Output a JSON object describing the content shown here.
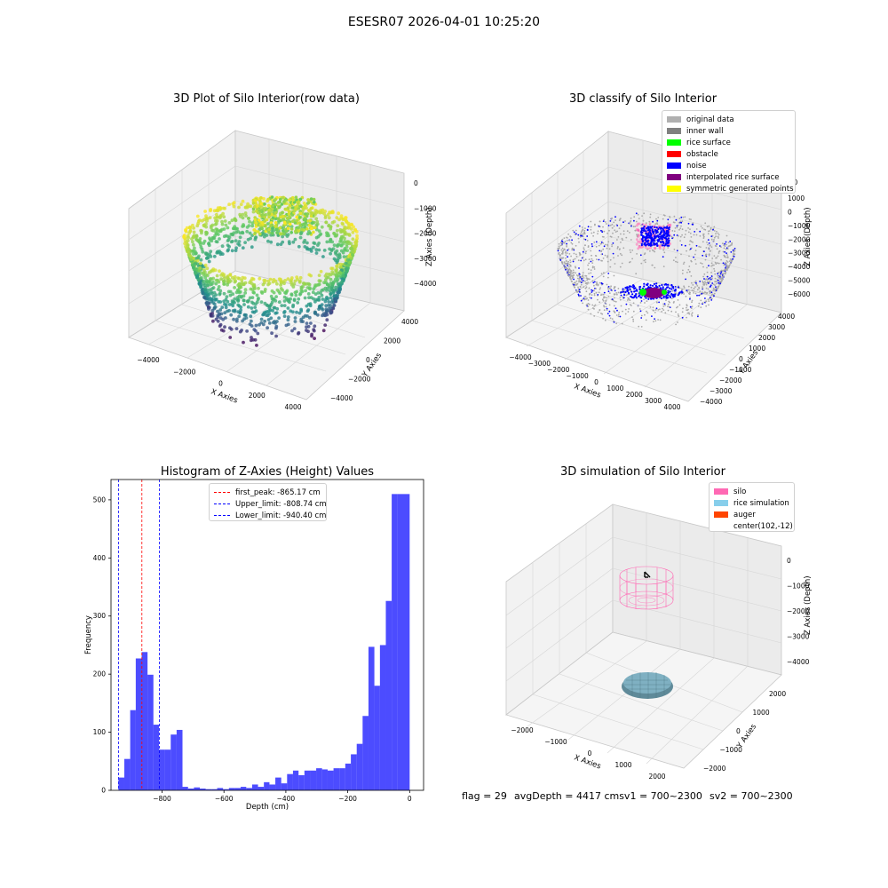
{
  "figure": {
    "suptitle": "ESESR07 2026-04-01 10:25:20"
  },
  "panels": {
    "raw": {
      "title": "3D Plot of Silo Interior(row data)",
      "xlabel": "X Axies",
      "ylabel": "Y Axies",
      "zlabel": "Z Axies (Depth)",
      "xticks": [
        "−4000",
        "−2000",
        "0",
        "2000",
        "4000"
      ],
      "yticks": [
        "−4000",
        "−2000",
        "0",
        "2000",
        "4000"
      ],
      "zticks": [
        "0",
        "−1000",
        "−2000",
        "−3000",
        "−4000"
      ],
      "colormap": "viridis"
    },
    "classify": {
      "title": "3D classify of Silo Interior",
      "xlabel": "X Axies",
      "ylabel": "Y Axies",
      "zlabel": "Z Axies (Depth)",
      "xticks": [
        "−4000",
        "−3000",
        "−2000",
        "−1000",
        "0",
        "1000",
        "2000",
        "3000",
        "4000"
      ],
      "yticks": [
        "−4000",
        "−3000",
        "−2000",
        "−1000",
        "0",
        "1000",
        "2000",
        "3000",
        "4000"
      ],
      "zticks": [
        "1000",
        "0",
        "−1000",
        "−2000",
        "−3000",
        "−4000",
        "−5000",
        "−6000"
      ],
      "legend": [
        {
          "label": "original data",
          "color": "#b0b0b0"
        },
        {
          "label": "inner wall",
          "color": "#808080"
        },
        {
          "label": "rice surface",
          "color": "#00ff00"
        },
        {
          "label": "obstacle",
          "color": "#ff0000"
        },
        {
          "label": "noise",
          "color": "#0000ff"
        },
        {
          "label": "interpolated rice surface",
          "color": "#800080"
        },
        {
          "label": "symmetric generated points",
          "color": "#ffff00"
        }
      ],
      "partial_ztick": "000"
    },
    "simulation": {
      "title": "3D simulation of Silo Interior",
      "xlabel": "X Axies",
      "ylabel": "Y Axies",
      "zlabel": "Z Axies (Depth)",
      "xticks": [
        "−2000",
        "−1000",
        "0",
        "1000",
        "2000"
      ],
      "yticks": [
        "−2000",
        "−1000",
        "0",
        "1000",
        "2000"
      ],
      "zticks": [
        "0",
        "−1000",
        "−2000",
        "−3000",
        "−4000"
      ],
      "legend": [
        {
          "label": "silo",
          "color": "#ff69b4"
        },
        {
          "label": "rice simulation",
          "color": "#87ceeb"
        },
        {
          "label": "auger",
          "color": "#ff4500"
        },
        {
          "label": "center(102,-12)",
          "color": ""
        }
      ]
    }
  },
  "chart_data": [
    {
      "type": "bar",
      "title": "Histogram of Z-Axies (Height) Values",
      "xlabel": "Depth (cm)",
      "ylabel": "Frequency",
      "xlim": [
        -965,
        45
      ],
      "ylim": [
        0,
        535
      ],
      "xticks": [
        -800,
        -600,
        -400,
        -200,
        0
      ],
      "xtick_labels": [
        "−800",
        "−600",
        "−400",
        "−200",
        "0"
      ],
      "yticks": [
        0,
        100,
        200,
        300,
        400,
        500
      ],
      "ytick_labels": [
        "0",
        "100",
        "200",
        "300",
        "400",
        "500"
      ],
      "bar_color": "#0000ff",
      "bar_opacity": 0.7,
      "bins": [
        {
          "x0": -941,
          "x1": -922,
          "y": 22
        },
        {
          "x0": -922,
          "x1": -903,
          "y": 54
        },
        {
          "x0": -903,
          "x1": -885,
          "y": 138
        },
        {
          "x0": -885,
          "x1": -866,
          "y": 227
        },
        {
          "x0": -866,
          "x1": -847,
          "y": 238
        },
        {
          "x0": -847,
          "x1": -828,
          "y": 199
        },
        {
          "x0": -828,
          "x1": -810,
          "y": 113
        },
        {
          "x0": -810,
          "x1": -791,
          "y": 70
        },
        {
          "x0": -791,
          "x1": -772,
          "y": 70
        },
        {
          "x0": -772,
          "x1": -753,
          "y": 96
        },
        {
          "x0": -753,
          "x1": -734,
          "y": 104
        },
        {
          "x0": -734,
          "x1": -716,
          "y": 6
        },
        {
          "x0": -716,
          "x1": -697,
          "y": 3
        },
        {
          "x0": -697,
          "x1": -678,
          "y": 5
        },
        {
          "x0": -678,
          "x1": -659,
          "y": 3
        },
        {
          "x0": -659,
          "x1": -640,
          "y": 2
        },
        {
          "x0": -640,
          "x1": -622,
          "y": 2
        },
        {
          "x0": -622,
          "x1": -603,
          "y": 4
        },
        {
          "x0": -603,
          "x1": -584,
          "y": 2
        },
        {
          "x0": -584,
          "x1": -565,
          "y": 4
        },
        {
          "x0": -565,
          "x1": -546,
          "y": 4
        },
        {
          "x0": -546,
          "x1": -528,
          "y": 6
        },
        {
          "x0": -528,
          "x1": -509,
          "y": 4
        },
        {
          "x0": -509,
          "x1": -490,
          "y": 10
        },
        {
          "x0": -490,
          "x1": -471,
          "y": 6
        },
        {
          "x0": -471,
          "x1": -453,
          "y": 14
        },
        {
          "x0": -453,
          "x1": -434,
          "y": 10
        },
        {
          "x0": -434,
          "x1": -415,
          "y": 22
        },
        {
          "x0": -415,
          "x1": -396,
          "y": 12
        },
        {
          "x0": -396,
          "x1": -377,
          "y": 28
        },
        {
          "x0": -377,
          "x1": -359,
          "y": 34
        },
        {
          "x0": -359,
          "x1": -340,
          "y": 26
        },
        {
          "x0": -340,
          "x1": -321,
          "y": 34
        },
        {
          "x0": -321,
          "x1": -302,
          "y": 34
        },
        {
          "x0": -302,
          "x1": -283,
          "y": 38
        },
        {
          "x0": -283,
          "x1": -265,
          "y": 36
        },
        {
          "x0": -265,
          "x1": -246,
          "y": 34
        },
        {
          "x0": -246,
          "x1": -227,
          "y": 38
        },
        {
          "x0": -227,
          "x1": -208,
          "y": 38
        },
        {
          "x0": -208,
          "x1": -190,
          "y": 46
        },
        {
          "x0": -190,
          "x1": -171,
          "y": 62
        },
        {
          "x0": -171,
          "x1": -152,
          "y": 80
        },
        {
          "x0": -152,
          "x1": -133,
          "y": 128
        },
        {
          "x0": -133,
          "x1": -114,
          "y": 247
        },
        {
          "x0": -114,
          "x1": -96,
          "y": 180
        },
        {
          "x0": -96,
          "x1": -77,
          "y": 250
        },
        {
          "x0": -77,
          "x1": -58,
          "y": 326
        },
        {
          "x0": -58,
          "x1": -39,
          "y": 510
        },
        {
          "x0": -39,
          "x1": 0,
          "y": 510
        }
      ],
      "vlines": [
        {
          "label": "first_peak: -865.17 cm",
          "x": -865.17,
          "color": "#ff0000"
        },
        {
          "label": "Upper_limit: -808.74 cm",
          "x": -808.74,
          "color": "#0000ff"
        },
        {
          "label": "Lower_limit: -940.40 cm",
          "x": -940.4,
          "color": "#0000ff"
        }
      ],
      "legend_position": "top-center"
    }
  ],
  "footer": {
    "flag": "flag = 29",
    "avg": "avgDepth = 4417 cmsv1 = 700~2300",
    "sv2": "sv2 = 700~2300"
  }
}
